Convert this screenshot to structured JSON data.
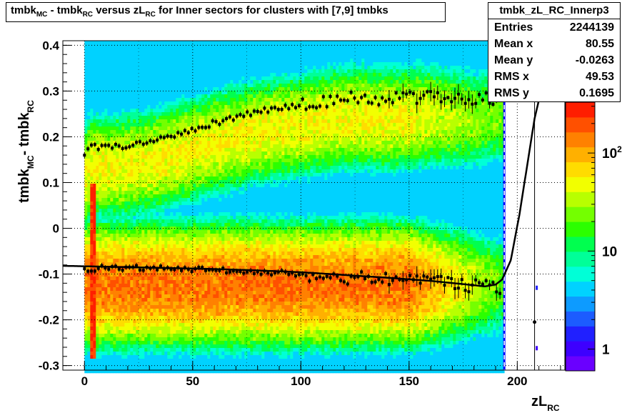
{
  "chart_data": {
    "type": "heatmap",
    "title": "tmbk_MC - tmbk_RC versus zL_RC for Inner sectors for clusters with [7,9] tmbks",
    "title_parts": {
      "a": "tmbk",
      "a_sub": "MC",
      "b": "- tmbk",
      "b_sub": "RC",
      "c": "versus zL",
      "c_sub": "RC",
      "d": "for Inner sectors for clusters with [7,9] tmbks"
    },
    "xlabel": "zL",
    "xlabel_sub": "RC",
    "ylabel": "tmbk",
    "ylabel_sub1": "MC",
    "ylabel_mid": "- tmbk",
    "ylabel_sub2": "RC",
    "xlim": [
      -10,
      222
    ],
    "ylim": [
      -0.31,
      0.41
    ],
    "x_ticks": [
      0,
      50,
      100,
      150,
      200
    ],
    "x_tick_labels": [
      "0",
      "50",
      "100",
      "150",
      "200"
    ],
    "y_ticks": [
      -0.3,
      -0.2,
      -0.1,
      0,
      0.1,
      0.2,
      0.3,
      0.4
    ],
    "y_tick_labels": [
      "-0.3",
      "-0.2",
      "-0.1",
      "0",
      "0.1",
      "0.2",
      "0.3",
      "0.4"
    ],
    "grid": true,
    "log_color_scale": true,
    "colorbar_labels": [
      {
        "value": 1,
        "label": "1"
      },
      {
        "value": 10,
        "label": "10"
      },
      {
        "value": 100,
        "label": "10",
        "sup": "2"
      }
    ],
    "colorbar_range": [
      0.6,
      330
    ],
    "stats": {
      "name": "tmbk_zL_RC_Innerp3",
      "rows": [
        {
          "label": "Entries",
          "value": "2244139"
        },
        {
          "label": "Mean x",
          "value": "80.55"
        },
        {
          "label": "Mean y",
          "value": "-0.0263"
        },
        {
          "label": "RMS x",
          "value": "49.53"
        },
        {
          "label": "RMS y",
          "value": "0.1695"
        }
      ]
    },
    "upper_profile": {
      "x": [
        0,
        2,
        5,
        10,
        20,
        30,
        40,
        50,
        60,
        70,
        80,
        90,
        100,
        110,
        120,
        130,
        140,
        150,
        160,
        170,
        180,
        190
      ],
      "y": [
        0.155,
        0.178,
        0.178,
        0.176,
        0.181,
        0.19,
        0.203,
        0.217,
        0.23,
        0.243,
        0.255,
        0.262,
        0.269,
        0.278,
        0.285,
        0.285,
        0.283,
        0.284,
        0.29,
        0.285,
        0.283,
        0.285
      ]
    },
    "lower_profile": {
      "x": [
        0,
        10,
        20,
        30,
        40,
        50,
        60,
        70,
        80,
        90,
        100,
        110,
        120,
        130,
        140,
        150,
        160,
        170,
        180,
        190
      ],
      "y": [
        -0.092,
        -0.085,
        -0.087,
        -0.086,
        -0.088,
        -0.089,
        -0.091,
        -0.093,
        -0.096,
        -0.098,
        -0.1,
        -0.103,
        -0.107,
        -0.11,
        -0.112,
        -0.115,
        -0.118,
        -0.12,
        -0.125,
        -0.128
      ]
    },
    "fit_curve": {
      "x": [
        -10,
        0,
        20,
        40,
        60,
        80,
        100,
        120,
        140,
        160,
        175,
        185,
        190,
        193,
        197,
        201,
        205,
        208,
        211
      ],
      "y": [
        -0.082,
        -0.083,
        -0.085,
        -0.087,
        -0.089,
        -0.092,
        -0.096,
        -0.102,
        -0.108,
        -0.115,
        -0.122,
        -0.127,
        -0.123,
        -0.112,
        -0.07,
        0.03,
        0.15,
        0.24,
        0.3
      ]
    },
    "edge_markers": {
      "x": [
        208
      ],
      "y": [
        -0.205
      ]
    }
  }
}
